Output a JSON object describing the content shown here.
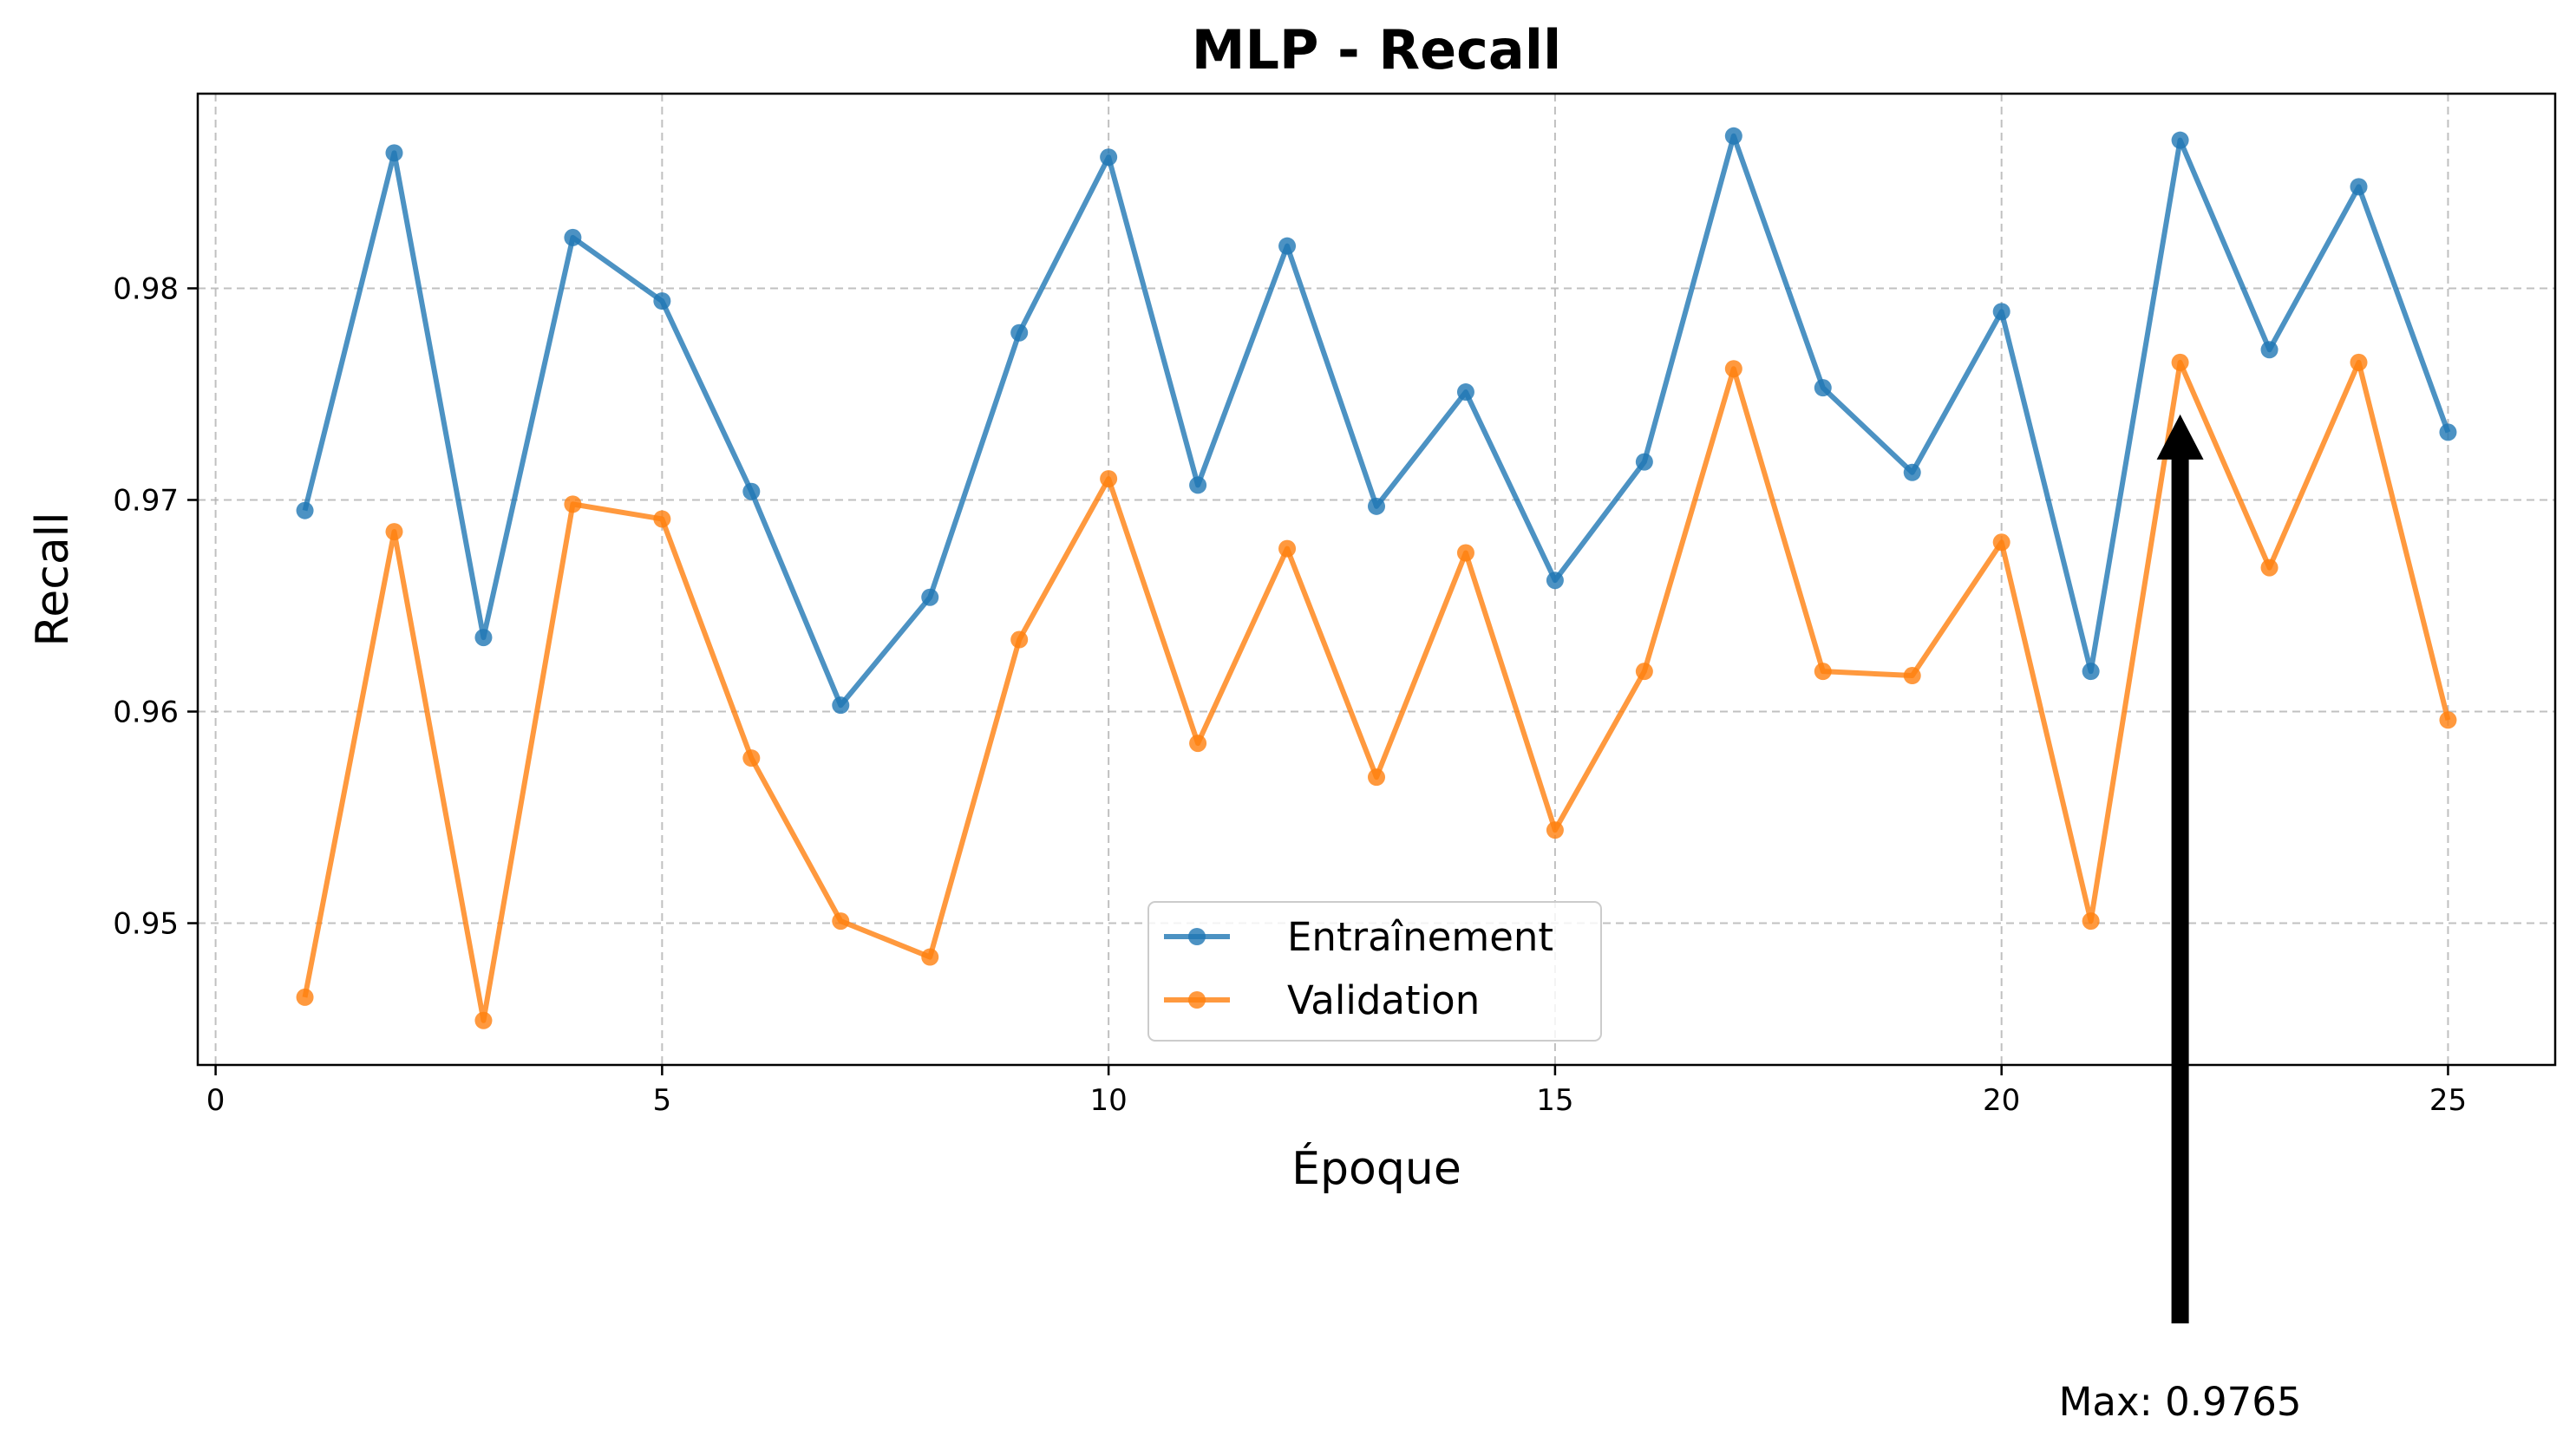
{
  "chart_data": {
    "type": "line",
    "title": "MLP - Recall",
    "xlabel": "Époque",
    "ylabel": "Recall",
    "xlim": [
      -0.2,
      26.2
    ],
    "ylim": [
      0.9433,
      0.9892
    ],
    "xticks": [
      0,
      5,
      10,
      15,
      20,
      25
    ],
    "xtick_labels": [
      "0",
      "5",
      "10",
      "15",
      "20",
      "25"
    ],
    "yticks": [
      0.95,
      0.96,
      0.97,
      0.98
    ],
    "ytick_labels": [
      "0.95",
      "0.96",
      "0.97",
      "0.98"
    ],
    "grid": true,
    "legend_position": "lower center",
    "x": [
      1,
      2,
      3,
      4,
      5,
      6,
      7,
      8,
      9,
      10,
      11,
      12,
      13,
      14,
      15,
      16,
      17,
      18,
      19,
      20,
      21,
      22,
      23,
      24,
      25
    ],
    "series": [
      {
        "name": "Entraînement",
        "color": "#1f77b4",
        "values": [
          0.9695,
          0.9864,
          0.9635,
          0.9824,
          0.9794,
          0.9704,
          0.9603,
          0.9654,
          0.9779,
          0.9862,
          0.9707,
          0.982,
          0.9697,
          0.9751,
          0.9662,
          0.9718,
          0.9872,
          0.9753,
          0.9713,
          0.9789,
          0.9619,
          0.987,
          0.9771,
          0.9848,
          0.9732
        ]
      },
      {
        "name": "Validation",
        "color": "#ff7f0e",
        "values": [
          0.9465,
          0.9685,
          0.9454,
          0.9698,
          0.9691,
          0.9578,
          0.9501,
          0.9484,
          0.9634,
          0.971,
          0.9585,
          0.9677,
          0.9569,
          0.9675,
          0.9544,
          0.9619,
          0.9762,
          0.9619,
          0.9617,
          0.968,
          0.9501,
          0.9765,
          0.9668,
          0.9765,
          0.9596
        ]
      }
    ],
    "annotation": {
      "text": "Max: 0.9765",
      "x": 22,
      "y": 0.9765
    }
  }
}
